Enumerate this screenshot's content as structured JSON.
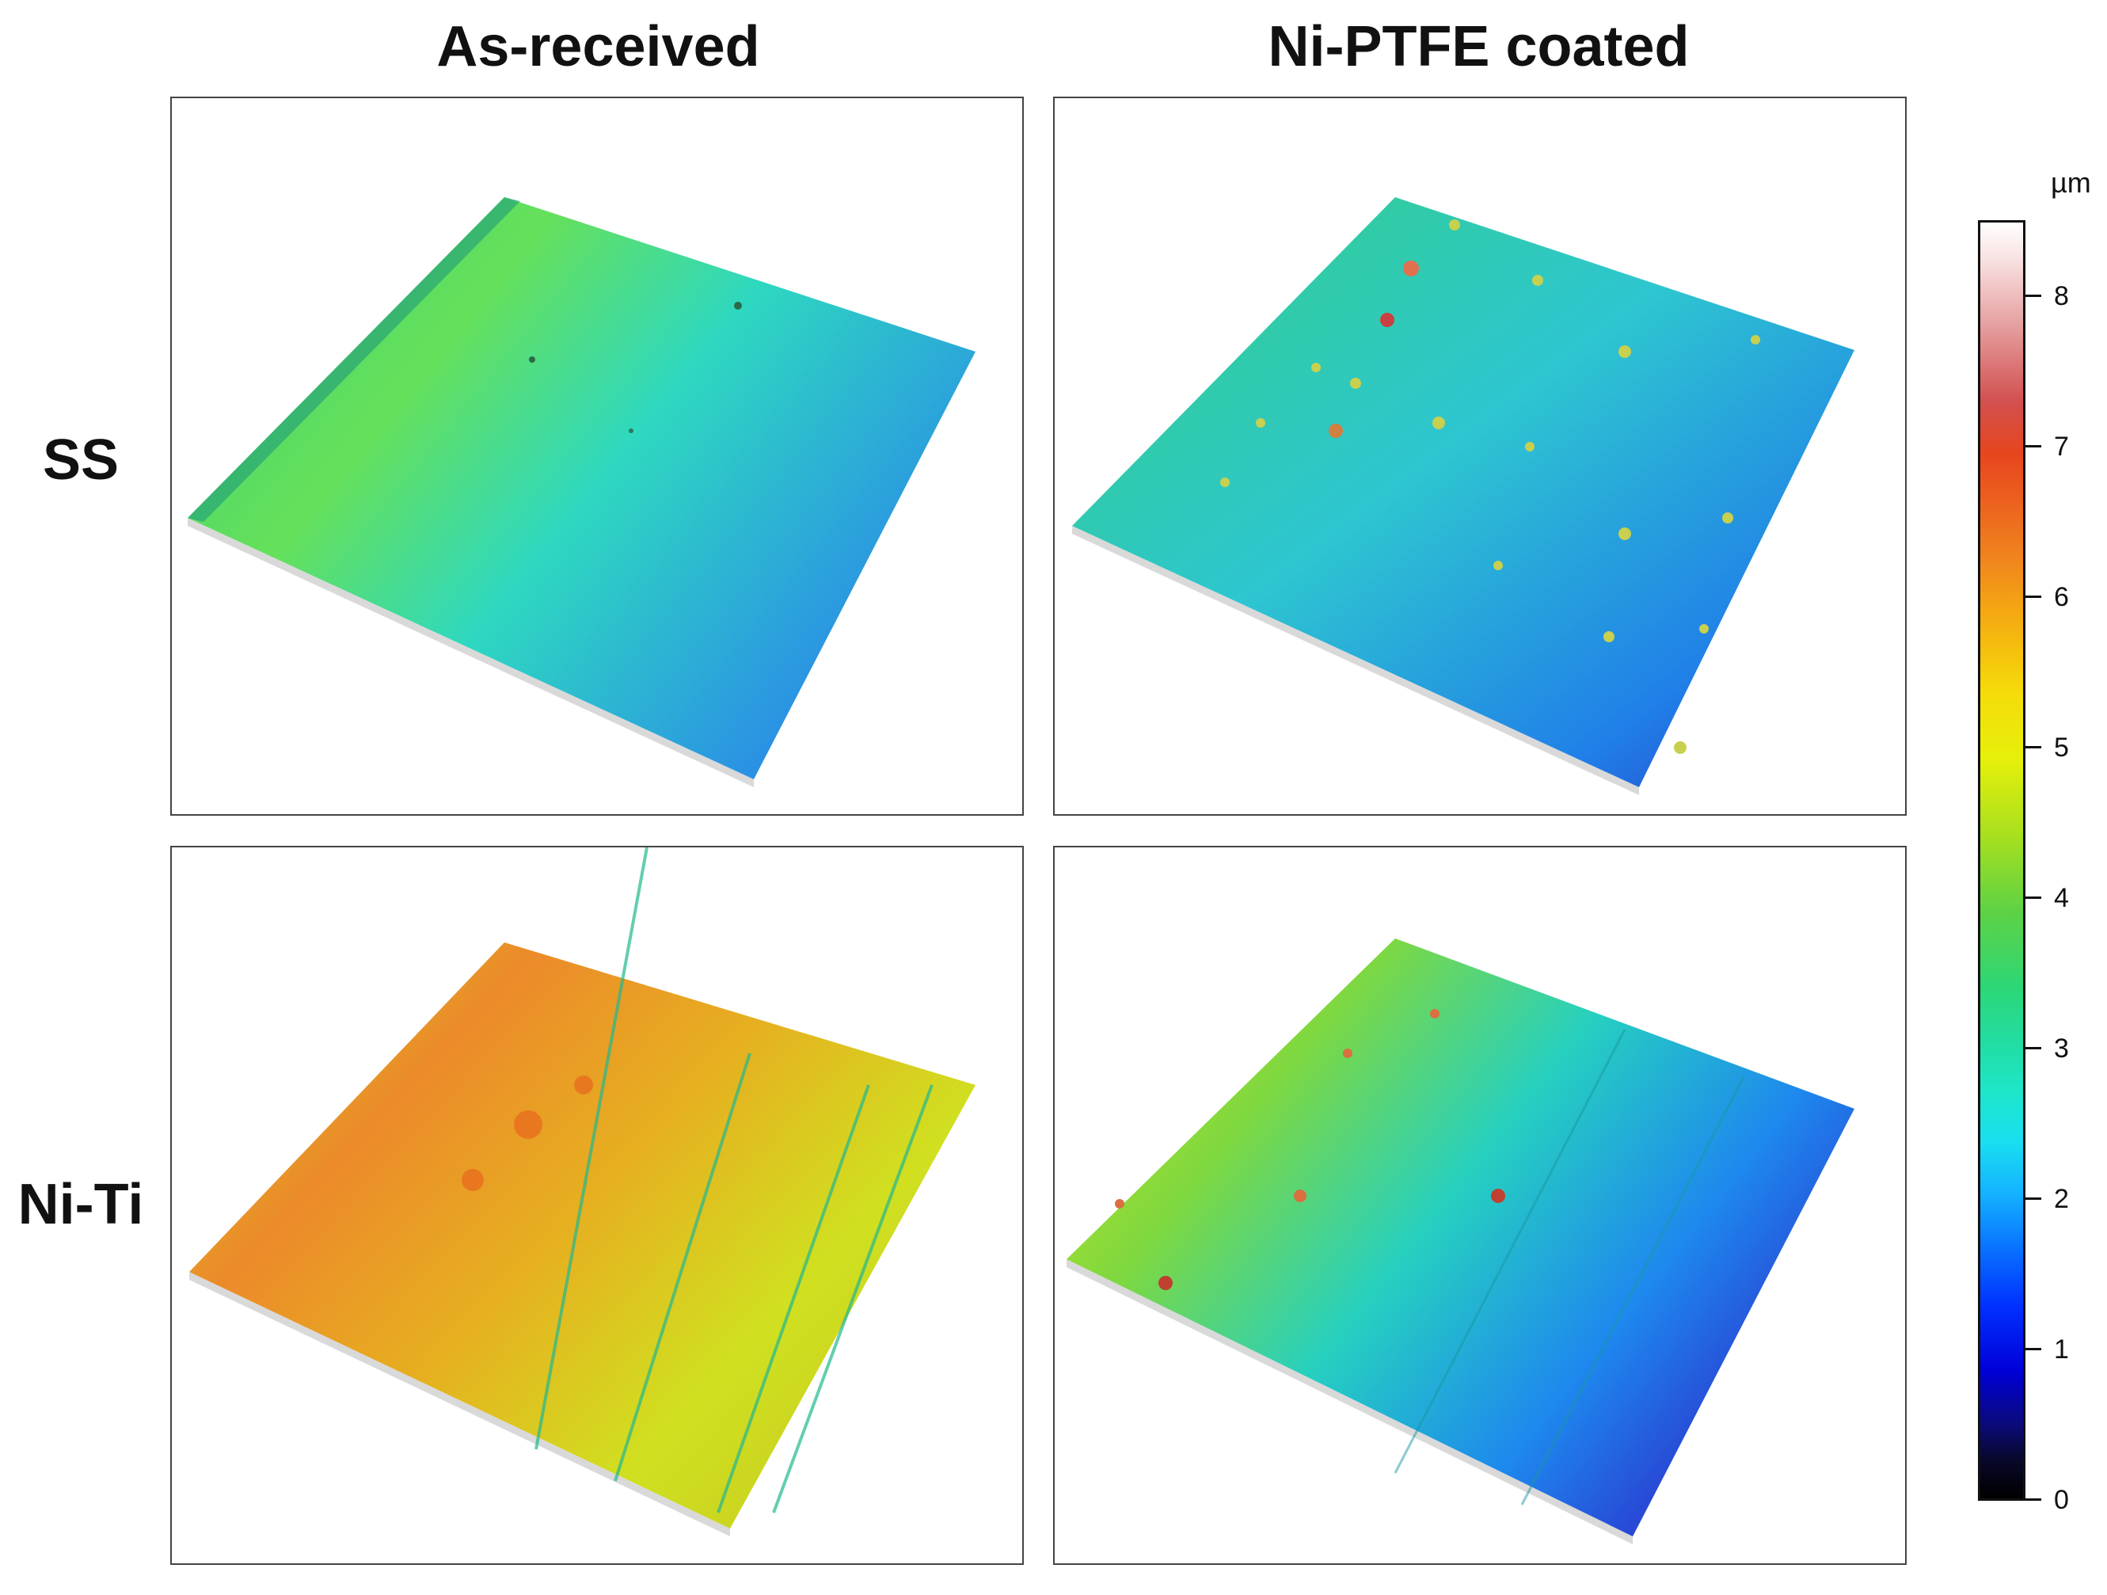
{
  "columns": {
    "left": "As-received",
    "right": "Ni-PTFE coated"
  },
  "rows": {
    "top": "SS",
    "bottom": "Ni-Ti"
  },
  "colorbar": {
    "unit": "µm",
    "ticks": [
      "0",
      "1",
      "2",
      "3",
      "4",
      "5",
      "6",
      "7",
      "8"
    ],
    "min": 0,
    "max": 8.5
  }
}
